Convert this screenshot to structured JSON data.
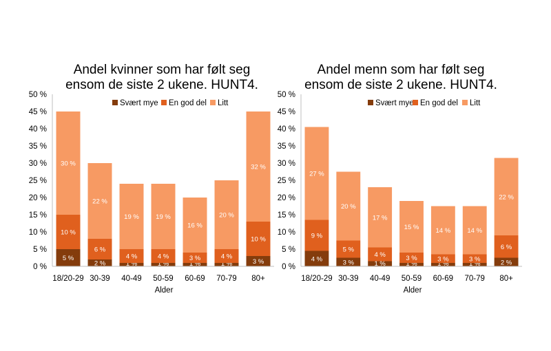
{
  "chart_data": [
    {
      "type": "bar",
      "stacked": true,
      "title_lines": [
        "Andel kvinner som har følt seg",
        "ensom de siste 2 ukene. HUNT4."
      ],
      "xlabel": "Alder",
      "ylabel": "",
      "ylim": [
        0,
        50
      ],
      "yticks": [
        "0 %",
        "5 %",
        "10 %",
        "15 %",
        "20 %",
        "25 %",
        "30 %",
        "35 %",
        "40 %",
        "45 %",
        "50 %"
      ],
      "grid": false,
      "legend_position": "top",
      "categories": [
        "18/20-29",
        "30-39",
        "40-49",
        "50-59",
        "60-69",
        "70-79",
        "80+"
      ],
      "series": [
        {
          "name": "Svært mye",
          "color": "#843C0C",
          "values": [
            5,
            2,
            1,
            1,
            1,
            1,
            3
          ],
          "labels": [
            "5 %",
            "2 %",
            "1 %",
            "1 %",
            "1 %",
            "1 %",
            "3 %"
          ]
        },
        {
          "name": "En god del",
          "color": "#E0601E",
          "values": [
            10,
            6,
            4,
            4,
            3,
            4,
            10
          ],
          "labels": [
            "10 %",
            "6 %",
            "4 %",
            "4 %",
            "3 %",
            "4 %",
            "10 %"
          ]
        },
        {
          "name": "Litt",
          "color": "#F79A63",
          "values": [
            30,
            22,
            19,
            19,
            16,
            20,
            32
          ],
          "labels": [
            "30 %",
            "22 %",
            "19 %",
            "19 %",
            "16 %",
            "20 %",
            "32 %"
          ]
        }
      ]
    },
    {
      "type": "bar",
      "stacked": true,
      "title_lines": [
        "Andel menn som har følt seg",
        "ensom de siste 2 ukene. HUNT4."
      ],
      "xlabel": "Alder",
      "ylabel": "",
      "ylim": [
        0,
        50
      ],
      "yticks": [
        "0 %",
        "5 %",
        "10 %",
        "15 %",
        "20 %",
        "25 %",
        "30 %",
        "35 %",
        "40 %",
        "45 %",
        "50 %"
      ],
      "grid": false,
      "legend_position": "top",
      "categories": [
        "18/20-29",
        "30-39",
        "40-49",
        "50-59",
        "60-69",
        "70-79",
        "80+"
      ],
      "series": [
        {
          "name": "Svært mye",
          "color": "#843C0C",
          "values": [
            4.5,
            2.5,
            1.5,
            1,
            1,
            1,
            2.5
          ],
          "labels": [
            "4 %",
            "3 %",
            "1 %",
            "1 %",
            "1 %",
            "1 %",
            "2 %"
          ]
        },
        {
          "name": "En god del",
          "color": "#E0601E",
          "values": [
            9,
            5,
            4,
            3,
            2.5,
            2.5,
            6.5
          ],
          "labels": [
            "9 %",
            "5 %",
            "4 %",
            "3 %",
            "3 %",
            "3 %",
            "6 %"
          ]
        },
        {
          "name": "Litt",
          "color": "#F79A63",
          "values": [
            27,
            20,
            17.5,
            15,
            14,
            14,
            22.5
          ],
          "labels": [
            "27 %",
            "20 %",
            "17 %",
            "15 %",
            "14 %",
            "14 %",
            "22 %"
          ]
        }
      ]
    }
  ]
}
